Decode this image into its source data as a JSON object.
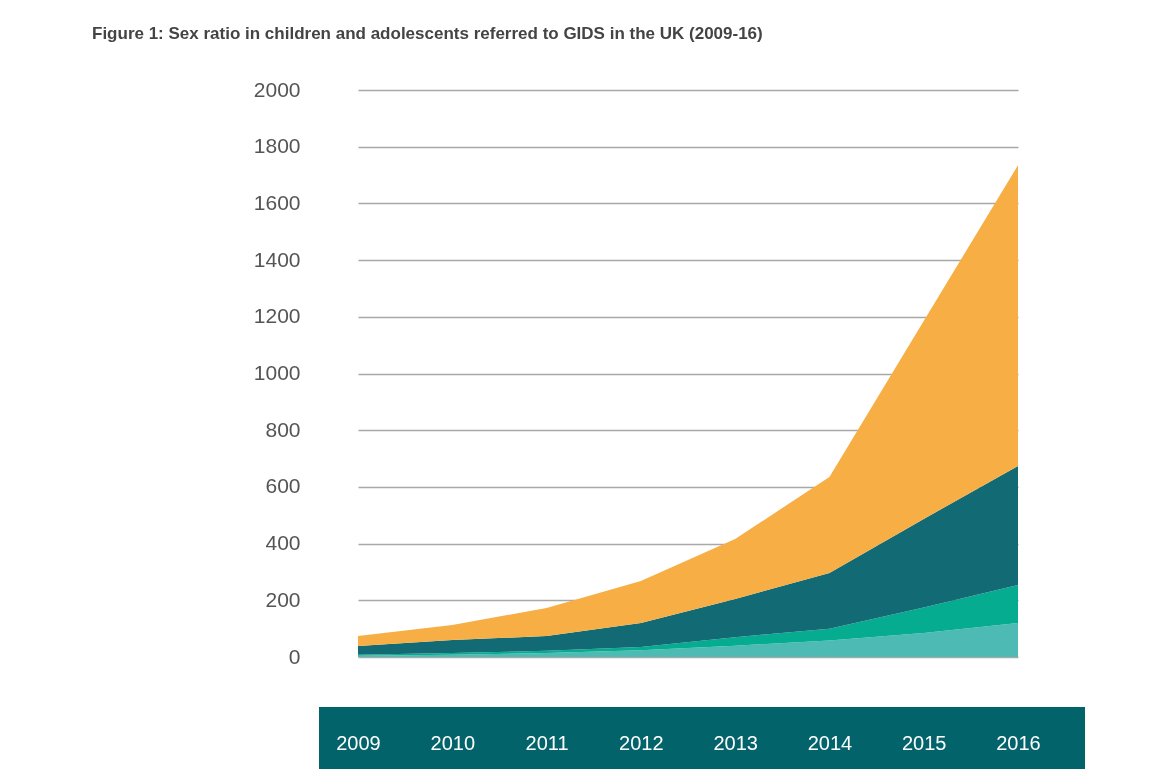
{
  "chart_data": {
    "type": "area",
    "title": "Figure 1: Sex ratio in children and adolescents referred to GIDS in the UK (2009-16)",
    "categories": [
      "2009",
      "2010",
      "2011",
      "2012",
      "2013",
      "2014",
      "2015",
      "2016"
    ],
    "stacked": true,
    "series": [
      {
        "color": "#4dbab3",
        "values": [
          4,
          8,
          14,
          24,
          40,
          58,
          85,
          120
        ]
      },
      {
        "color": "#05ac8f",
        "values": [
          4,
          6,
          8,
          11,
          30,
          42,
          90,
          134
        ]
      },
      {
        "color": "#126b74",
        "values": [
          31,
          46,
          52,
          85,
          135,
          196,
          312,
          420
        ]
      },
      {
        "color": "#f6ae45",
        "values": [
          35,
          53,
          99,
          148,
          211,
          339,
          698,
          1061
        ]
      }
    ],
    "ylim": [
      0,
      2000
    ],
    "yticks": [
      0,
      200,
      400,
      600,
      800,
      1000,
      1200,
      1400,
      1600,
      1800,
      2000
    ],
    "grid": "y"
  }
}
